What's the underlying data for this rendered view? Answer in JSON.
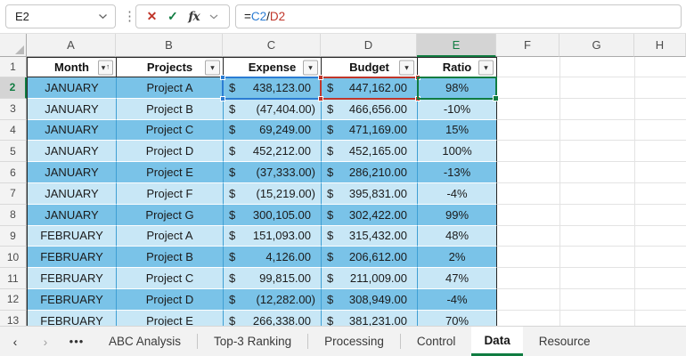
{
  "colors": {
    "accent_green": "#107C41",
    "ref_blue": "#2B7CD3",
    "ref_red": "#C0362A",
    "band_dark": "#7AC3E8",
    "band_light": "#C8E7F6"
  },
  "formula_bar": {
    "name_box": "E2",
    "cancel_label": "✕",
    "confirm_label": "✓",
    "function_label": "fx",
    "formula_segments": [
      {
        "text": "=",
        "color": "#1a1a1a"
      },
      {
        "text": "C2",
        "color": "#2B7CD3"
      },
      {
        "text": "/",
        "color": "#1a1a1a"
      },
      {
        "text": "D2",
        "color": "#C0362A"
      }
    ]
  },
  "grid": {
    "column_letters": [
      "A",
      "B",
      "C",
      "D",
      "E",
      "F",
      "G",
      "H"
    ],
    "selected_column": "E",
    "row_numbers": [
      1,
      2,
      3,
      4,
      5,
      6,
      7,
      8,
      9,
      10,
      11,
      12,
      13
    ],
    "selected_row": 2,
    "active_cell": "E2",
    "referenced_cells": [
      "C2",
      "D2"
    ]
  },
  "table": {
    "headers": [
      {
        "label": "Month",
        "sorted": true
      },
      {
        "label": "Projects",
        "sorted": false
      },
      {
        "label": "Expense",
        "sorted": false
      },
      {
        "label": "Budget",
        "sorted": false
      },
      {
        "label": "Ratio",
        "sorted": false
      }
    ],
    "rows": [
      {
        "row": 2,
        "month": "JANUARY",
        "project": "Project A",
        "currency": "$",
        "expense": "438,123.00",
        "expense_negative": false,
        "budget": "447,162.00",
        "ratio": "98%"
      },
      {
        "row": 3,
        "month": "JANUARY",
        "project": "Project B",
        "currency": "$",
        "expense": "(47,404.00)",
        "expense_negative": true,
        "budget": "466,656.00",
        "ratio": "-10%"
      },
      {
        "row": 4,
        "month": "JANUARY",
        "project": "Project C",
        "currency": "$",
        "expense": "69,249.00",
        "expense_negative": false,
        "budget": "471,169.00",
        "ratio": "15%"
      },
      {
        "row": 5,
        "month": "JANUARY",
        "project": "Project D",
        "currency": "$",
        "expense": "452,212.00",
        "expense_negative": false,
        "budget": "452,165.00",
        "ratio": "100%"
      },
      {
        "row": 6,
        "month": "JANUARY",
        "project": "Project E",
        "currency": "$",
        "expense": "(37,333.00)",
        "expense_negative": true,
        "budget": "286,210.00",
        "ratio": "-13%"
      },
      {
        "row": 7,
        "month": "JANUARY",
        "project": "Project F",
        "currency": "$",
        "expense": "(15,219.00)",
        "expense_negative": true,
        "budget": "395,831.00",
        "ratio": "-4%"
      },
      {
        "row": 8,
        "month": "JANUARY",
        "project": "Project G",
        "currency": "$",
        "expense": "300,105.00",
        "expense_negative": false,
        "budget": "302,422.00",
        "ratio": "99%"
      },
      {
        "row": 9,
        "month": "FEBRUARY",
        "project": "Project A",
        "currency": "$",
        "expense": "151,093.00",
        "expense_negative": false,
        "budget": "315,432.00",
        "ratio": "48%"
      },
      {
        "row": 10,
        "month": "FEBRUARY",
        "project": "Project B",
        "currency": "$",
        "expense": "4,126.00",
        "expense_negative": false,
        "budget": "206,612.00",
        "ratio": "2%"
      },
      {
        "row": 11,
        "month": "FEBRUARY",
        "project": "Project C",
        "currency": "$",
        "expense": "99,815.00",
        "expense_negative": false,
        "budget": "211,009.00",
        "ratio": "47%"
      },
      {
        "row": 12,
        "month": "FEBRUARY",
        "project": "Project D",
        "currency": "$",
        "expense": "(12,282.00)",
        "expense_negative": true,
        "budget": "308,949.00",
        "ratio": "-4%"
      },
      {
        "row": 13,
        "month": "FEBRUARY",
        "project": "Project E",
        "currency": "$",
        "expense": "266,338.00",
        "expense_negative": false,
        "budget": "381,231.00",
        "ratio": "70%"
      }
    ]
  },
  "sheet_tabs": {
    "nav_left": "‹",
    "nav_right": "›",
    "more": "•••",
    "tabs": [
      "ABC Analysis",
      "Top-3 Ranking",
      "Processing",
      "Control",
      "Data",
      "Resource"
    ],
    "active": "Data"
  }
}
